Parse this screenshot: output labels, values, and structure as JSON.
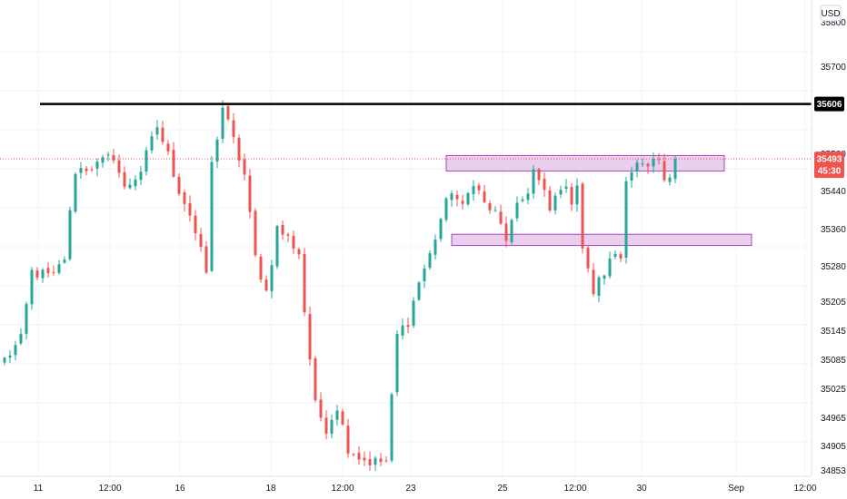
{
  "currency_button": "USD",
  "colors": {
    "up": "#26a69a",
    "down": "#ef5350",
    "grid": "#f0f3fa",
    "axis_text": "#131722",
    "resistance_line": "#000000",
    "zone_fill": "#e1bee7",
    "zone_stroke": "#ab47bc",
    "last_price": "#ef5350"
  },
  "price_axis": {
    "ticks": [
      "35800",
      "35700",
      "35606",
      "35520",
      "35493",
      "35440",
      "35360",
      "35280",
      "35205",
      "35145",
      "35085",
      "35025",
      "34965",
      "34905",
      "34853"
    ]
  },
  "time_axis": {
    "labels": [
      "11",
      "12:00",
      "16",
      "18",
      "12:00",
      "23",
      "25",
      "12:00",
      "30",
      "Sep",
      "12:00"
    ]
  },
  "resistance": {
    "price_label": "35606"
  },
  "last_price": {
    "price_label": "35493",
    "countdown": "45:30"
  },
  "chart_data": {
    "type": "candlestick",
    "ylim": [
      34840,
      35820
    ],
    "grid": true,
    "resistance_price": 35606,
    "last_price": 35493,
    "zones": [
      {
        "from_index": 81,
        "to_index": 132,
        "low": 35468,
        "high": 35500
      },
      {
        "from_index": 82,
        "to_index": 137,
        "low": 35315,
        "high": 35338
      }
    ],
    "anchors": [
      [
        0,
        35080
      ],
      [
        3,
        35120
      ],
      [
        5,
        35260
      ],
      [
        9,
        35250
      ],
      [
        11,
        35290
      ],
      [
        13,
        35470
      ],
      [
        17,
        35480
      ],
      [
        20,
        35500
      ],
      [
        22,
        35430
      ],
      [
        25,
        35470
      ],
      [
        28,
        35560
      ],
      [
        30,
        35500
      ],
      [
        32,
        35430
      ],
      [
        34,
        35380
      ],
      [
        36,
        35300
      ],
      [
        37,
        35260
      ],
      [
        38,
        35480
      ],
      [
        40,
        35600
      ],
      [
        42,
        35530
      ],
      [
        44,
        35460
      ],
      [
        46,
        35290
      ],
      [
        48,
        35220
      ],
      [
        50,
        35350
      ],
      [
        52,
        35330
      ],
      [
        54,
        35300
      ],
      [
        55,
        35180
      ],
      [
        57,
        34985
      ],
      [
        59,
        34940
      ],
      [
        61,
        34985
      ],
      [
        63,
        34900
      ],
      [
        65,
        34880
      ],
      [
        67,
        34870
      ],
      [
        70,
        34870
      ],
      [
        72,
        35130
      ],
      [
        74,
        35160
      ],
      [
        76,
        35240
      ],
      [
        78,
        35295
      ],
      [
        80,
        35370
      ],
      [
        82,
        35430
      ],
      [
        84,
        35390
      ],
      [
        86,
        35450
      ],
      [
        88,
        35400
      ],
      [
        90,
        35380
      ],
      [
        92,
        35330
      ],
      [
        94,
        35390
      ],
      [
        96,
        35430
      ],
      [
        97,
        35470
      ],
      [
        99,
        35420
      ],
      [
        100,
        35385
      ],
      [
        102,
        35440
      ],
      [
        104,
        35410
      ],
      [
        105,
        35445
      ],
      [
        106,
        35310
      ],
      [
        107,
        35260
      ],
      [
        108,
        35220
      ],
      [
        110,
        35260
      ],
      [
        112,
        35300
      ],
      [
        113,
        35290
      ],
      [
        114,
        35460
      ],
      [
        116,
        35480
      ],
      [
        118,
        35470
      ],
      [
        120,
        35490
      ],
      [
        121,
        35440
      ],
      [
        122,
        35460
      ],
      [
        123,
        35493
      ]
    ]
  }
}
